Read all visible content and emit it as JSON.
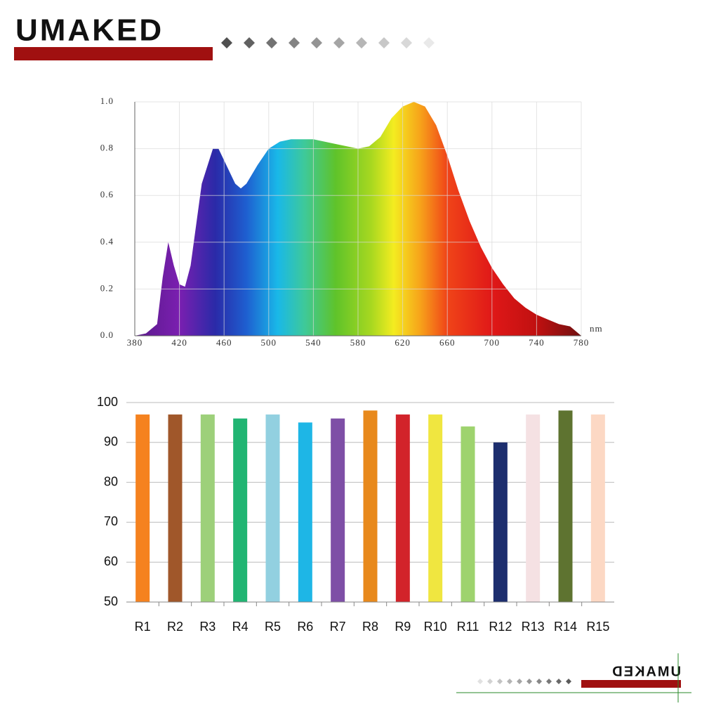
{
  "brand": "UMAKED",
  "chart_data": [
    {
      "type": "area",
      "x": [
        380,
        390,
        400,
        405,
        410,
        415,
        420,
        425,
        430,
        440,
        450,
        455,
        460,
        470,
        475,
        480,
        490,
        500,
        510,
        520,
        530,
        540,
        550,
        560,
        570,
        580,
        590,
        600,
        610,
        620,
        630,
        640,
        650,
        660,
        670,
        680,
        690,
        700,
        710,
        720,
        730,
        740,
        750,
        760,
        770,
        780
      ],
      "values": [
        0,
        0.01,
        0.05,
        0.25,
        0.4,
        0.3,
        0.22,
        0.21,
        0.3,
        0.65,
        0.8,
        0.8,
        0.75,
        0.65,
        0.63,
        0.65,
        0.73,
        0.8,
        0.83,
        0.84,
        0.84,
        0.84,
        0.83,
        0.82,
        0.81,
        0.8,
        0.81,
        0.85,
        0.93,
        0.98,
        1.0,
        0.98,
        0.9,
        0.77,
        0.62,
        0.49,
        0.38,
        0.29,
        0.22,
        0.16,
        0.12,
        0.09,
        0.07,
        0.05,
        0.04,
        0
      ],
      "x_label": "nm",
      "xlim": [
        380,
        780
      ],
      "xticks": [
        380,
        420,
        460,
        500,
        540,
        580,
        620,
        660,
        700,
        740,
        780
      ],
      "ylim": [
        0,
        1
      ],
      "yticks": [
        {
          "value": 0,
          "label": "0.0"
        },
        0.2,
        0.4,
        0.6,
        0.8,
        {
          "value": 1,
          "label": "1.0"
        }
      ],
      "grid": true
    },
    {
      "type": "bar",
      "categories": [
        "R1",
        "R2",
        "R3",
        "R4",
        "R5",
        "R6",
        "R7",
        "R8",
        "R9",
        "R10",
        "R11",
        "R12",
        "R13",
        "R14",
        "R15"
      ],
      "values": [
        97,
        97,
        97,
        96,
        97,
        95,
        96,
        98,
        97,
        97,
        94,
        90,
        97,
        98,
        97
      ],
      "colors": [
        "#f5821f",
        "#a0572a",
        "#9dd07a",
        "#21b573",
        "#92d0e0",
        "#1eb6e6",
        "#7e4fa6",
        "#e8891c",
        "#d2232a",
        "#f0e640",
        "#9ed36e",
        "#1d2e6e",
        "#f5e1e3",
        "#5e7330",
        "#fcd8c4"
      ],
      "ylim": [
        50,
        100
      ],
      "yticks": [
        50,
        60,
        70,
        80,
        90,
        100
      ],
      "grid": true
    }
  ]
}
